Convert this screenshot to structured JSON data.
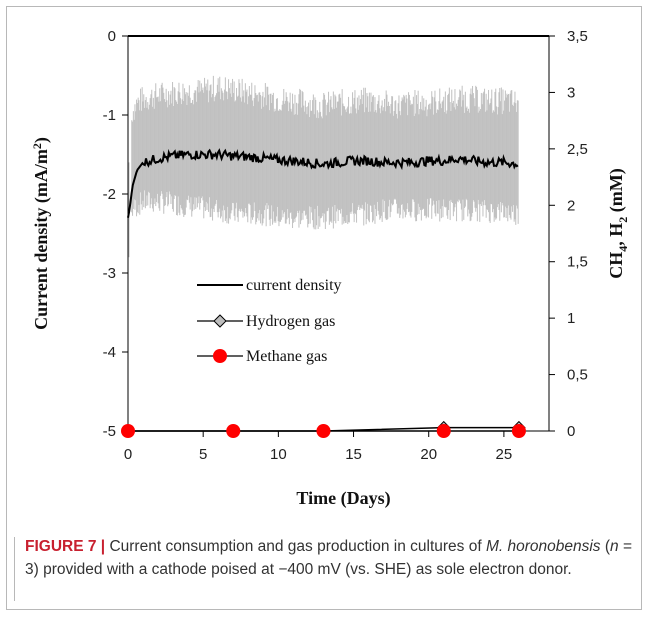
{
  "chart_data": {
    "type": "line",
    "x_axis": {
      "label": "Time (Days)",
      "range": [
        0,
        28
      ],
      "ticks": [
        0,
        5,
        10,
        15,
        20,
        25
      ],
      "tick_labels": [
        "0",
        "5",
        "10",
        "15",
        "20",
        "25"
      ]
    },
    "y_axis_left": {
      "label_main": "Current density (mA/m",
      "label_sup": "2",
      "label_end": ")",
      "range": [
        -5,
        0
      ],
      "ticks": [
        0,
        -1,
        -2,
        -3,
        -4,
        -5
      ],
      "tick_labels": [
        "0",
        "-1",
        "-2",
        "-3",
        "-4",
        "-5"
      ]
    },
    "y_axis_right": {
      "label_parts": [
        "CH",
        "4",
        ", H",
        "2",
        " (mM)"
      ],
      "range": [
        0,
        3.5
      ],
      "ticks": [
        3.5,
        3,
        2.5,
        2,
        1.5,
        1,
        0.5,
        0
      ],
      "tick_labels": [
        "3,5",
        "3",
        "2,5",
        "2",
        "1,5",
        "1",
        "0,5",
        "0"
      ]
    },
    "series": [
      {
        "name": "current density",
        "axis": "left",
        "color": "#000000",
        "band_color": "#c0c0c0",
        "x": [
          0,
          0.1,
          0.3,
          0.6,
          1,
          2,
          3,
          4,
          5,
          6,
          7,
          8,
          9,
          10,
          11,
          12,
          13,
          14,
          15,
          16,
          17,
          18,
          19,
          20,
          21,
          22,
          23,
          24,
          25,
          26
        ],
        "y": [
          -2.3,
          -2.2,
          -1.9,
          -1.7,
          -1.6,
          -1.55,
          -1.52,
          -1.5,
          -1.5,
          -1.5,
          -1.52,
          -1.53,
          -1.55,
          -1.57,
          -1.58,
          -1.6,
          -1.62,
          -1.6,
          -1.58,
          -1.58,
          -1.6,
          -1.6,
          -1.6,
          -1.58,
          -1.58,
          -1.55,
          -1.58,
          -1.6,
          -1.6,
          -1.62
        ],
        "band_upper": [
          -1.6,
          -1.4,
          -0.95,
          -0.85,
          -0.8,
          -0.75,
          -0.72,
          -0.7,
          -0.7,
          -0.65,
          -0.68,
          -0.72,
          -0.75,
          -0.8,
          -0.82,
          -0.85,
          -0.88,
          -0.85,
          -0.83,
          -0.82,
          -0.85,
          -0.88,
          -0.85,
          -0.85,
          -0.82,
          -0.8,
          -0.8,
          -0.82,
          -0.82,
          -0.85
        ],
        "band_lower": [
          -2.5,
          -2.4,
          -2.2,
          -2.15,
          -2.1,
          -2.1,
          -2.12,
          -2.15,
          -2.18,
          -2.2,
          -2.25,
          -2.25,
          -2.25,
          -2.3,
          -2.3,
          -2.3,
          -2.3,
          -2.28,
          -2.25,
          -2.25,
          -2.2,
          -2.2,
          -2.2,
          -2.2,
          -2.2,
          -2.2,
          -2.2,
          -2.22,
          -2.22,
          -2.25
        ]
      },
      {
        "name": "Hydrogen gas",
        "axis": "right",
        "color": "#000000",
        "marker": "diamond",
        "marker_fill": "#bdbdbd",
        "x": [
          0,
          7,
          13,
          21,
          26
        ],
        "y": [
          0,
          0,
          0,
          0.03,
          0.03
        ]
      },
      {
        "name": "Methane gas",
        "axis": "right",
        "color": "#000000",
        "marker": "circle",
        "marker_fill": "#ff0000",
        "x": [
          0,
          7,
          13,
          21,
          26
        ],
        "y": [
          0,
          0,
          0,
          0,
          0
        ]
      }
    ],
    "legend": {
      "placement": "center-left"
    },
    "grid": false
  },
  "caption": {
    "figure_label": "FIGURE 7 |",
    "text_1": " Current consumption and gas production in cultures of ",
    "species": "M. horonobensis",
    "text_2": " (",
    "n_var": "n",
    "text_3": " = 3) provided with a cathode poised at −400 mV (vs. SHE) as sole electron donor."
  }
}
